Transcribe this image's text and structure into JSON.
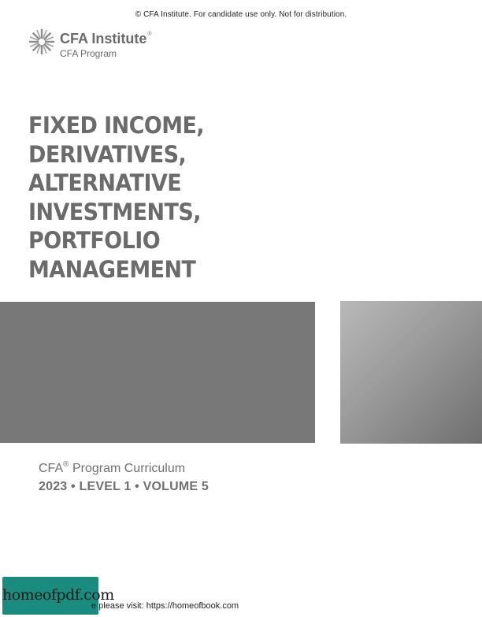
{
  "header": {
    "copyright": "© CFA Institute. For candidate use only. Not for distribution."
  },
  "logo": {
    "icon": "cfa-starburst-icon",
    "name": "CFA Institute",
    "registered": "®",
    "program": "CFA Program"
  },
  "title": {
    "lines": [
      "FIXED INCOME,",
      "DERIVATIVES,",
      "ALTERNATIVE",
      "INVESTMENTS,",
      "PORTFOLIO",
      "MANAGEMENT"
    ]
  },
  "curriculum": {
    "prefix": "CFA",
    "registered": "®",
    "label": " Program Curriculum",
    "edition": "2023 • LEVEL 1 • VOLUME 5"
  },
  "watermark": {
    "badge": "homeofpdf.com",
    "text": "e please visit: https://homeofbook.com"
  },
  "colors": {
    "title": "#6b6b6b",
    "block_left": "#787878",
    "badge": "#1a8c7f"
  }
}
